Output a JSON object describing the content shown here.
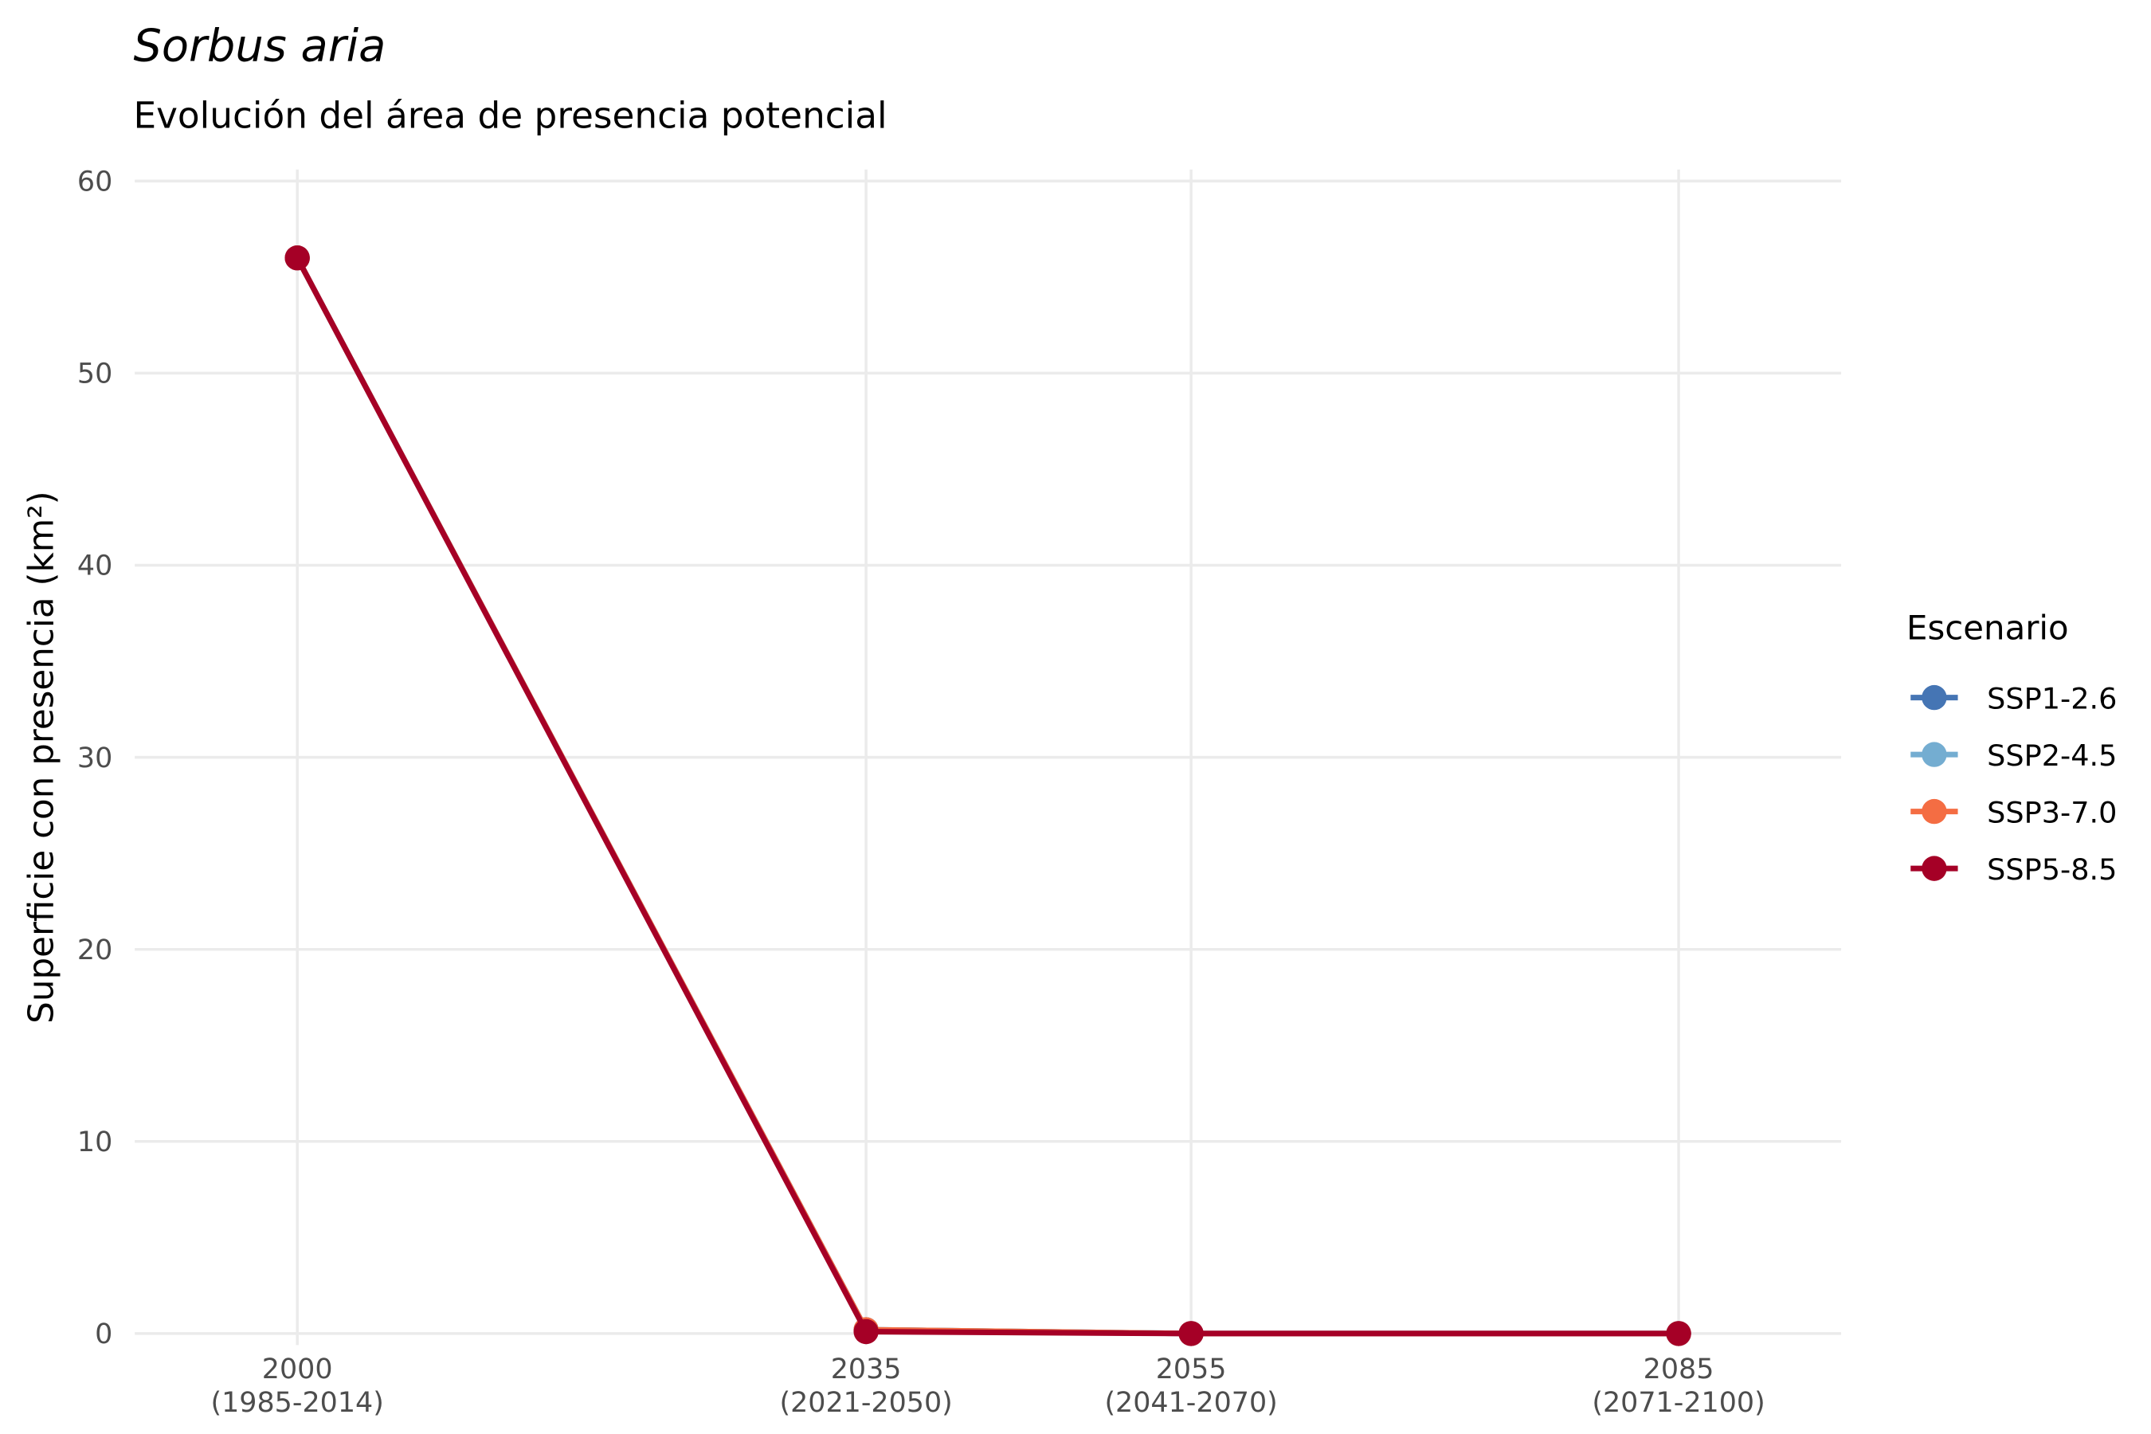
{
  "chart_data": {
    "type": "line",
    "title": "Sorbus aria",
    "subtitle": "Evolución del área de presencia potencial",
    "y_label": "Superficie con presencia (km²)",
    "legend_title": "Escenario",
    "legend_position": "right",
    "grid": true,
    "x": [
      2000,
      2035,
      2055,
      2085
    ],
    "xlim": [
      1990,
      2095
    ],
    "xticks": [
      {
        "value": 2000,
        "label": "2000\n(1985-2014)"
      },
      {
        "value": 2035,
        "label": "2035\n(2021-2050)"
      },
      {
        "value": 2055,
        "label": "2055\n(2041-2070)"
      },
      {
        "value": 2085,
        "label": "2085\n(2071-2100)"
      }
    ],
    "ylim": [
      -0.6,
      60.6
    ],
    "yticks": [
      0,
      10,
      20,
      30,
      40,
      50,
      60
    ],
    "series": [
      {
        "name": "SSP1-2.6",
        "color": "#4575b4",
        "values": [
          56,
          0.2,
          0,
          0
        ]
      },
      {
        "name": "SSP2-4.5",
        "color": "#74add1",
        "values": [
          56,
          0.2,
          0,
          0
        ]
      },
      {
        "name": "SSP3-7.0",
        "color": "#f46d43",
        "values": [
          56,
          0.2,
          0,
          0
        ]
      },
      {
        "name": "SSP5-8.5",
        "color": "#a50026",
        "values": [
          56,
          0.1,
          0,
          0
        ]
      }
    ]
  }
}
